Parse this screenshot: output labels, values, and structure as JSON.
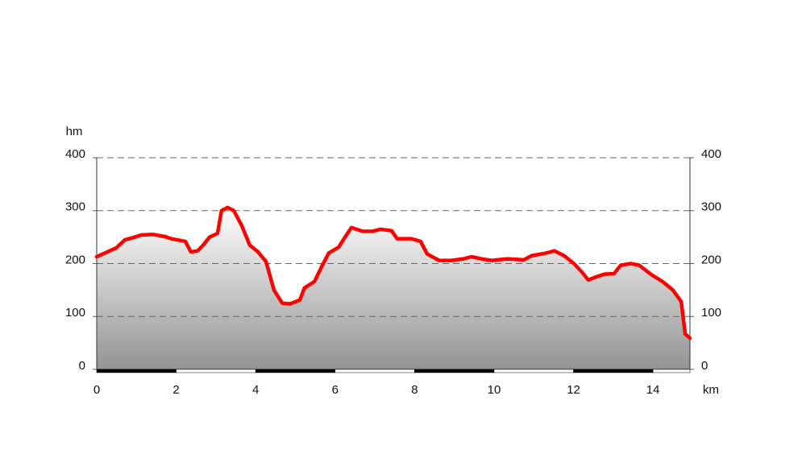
{
  "chart_data": {
    "type": "area",
    "y_label": "hm",
    "x_label": "km",
    "x": [
      0,
      0.5,
      0.71,
      0.91,
      1.12,
      1.42,
      1.72,
      1.87,
      2.23,
      2.37,
      2.54,
      2.68,
      2.84,
      3.04,
      3.14,
      3.29,
      3.45,
      3.65,
      3.85,
      4.06,
      4.26,
      4.46,
      4.67,
      4.87,
      5.11,
      5.23,
      5.48,
      5.68,
      5.84,
      6.09,
      6.25,
      6.41,
      6.69,
      6.94,
      7.14,
      7.42,
      7.56,
      7.91,
      8.15,
      8.32,
      8.62,
      8.92,
      9.23,
      9.43,
      9.68,
      9.94,
      10.34,
      10.75,
      10.95,
      11.26,
      11.52,
      11.76,
      12.01,
      12.21,
      12.37,
      12.58,
      12.78,
      13.02,
      13.19,
      13.43,
      13.65,
      13.96,
      14.24,
      14.5,
      14.71,
      14.81,
      14.93
    ],
    "values": [
      213,
      230,
      245,
      249,
      254,
      255,
      251,
      247,
      242,
      222,
      224,
      235,
      250,
      257,
      300,
      306,
      300,
      272,
      235,
      222,
      204,
      150,
      125,
      124,
      131,
      154,
      166,
      197,
      220,
      231,
      250,
      268,
      261,
      261,
      265,
      262,
      247,
      247,
      242,
      218,
      206,
      206,
      209,
      213,
      209,
      206,
      209,
      207,
      215,
      219,
      224,
      215,
      200,
      184,
      169,
      175,
      180,
      181,
      197,
      200,
      197,
      179,
      166,
      150,
      128,
      67,
      59
    ],
    "color": "#ff0000",
    "xlim": [
      0,
      14.93
    ],
    "xticks": [
      0,
      2,
      4,
      6,
      8,
      10,
      12,
      14
    ],
    "ylim": [
      0,
      400
    ],
    "yticks": [
      0,
      100,
      200,
      300,
      400
    ],
    "y2lim": [
      0,
      400
    ],
    "y2ticks": [
      0,
      100,
      200,
      300,
      400
    ],
    "grid": true
  }
}
